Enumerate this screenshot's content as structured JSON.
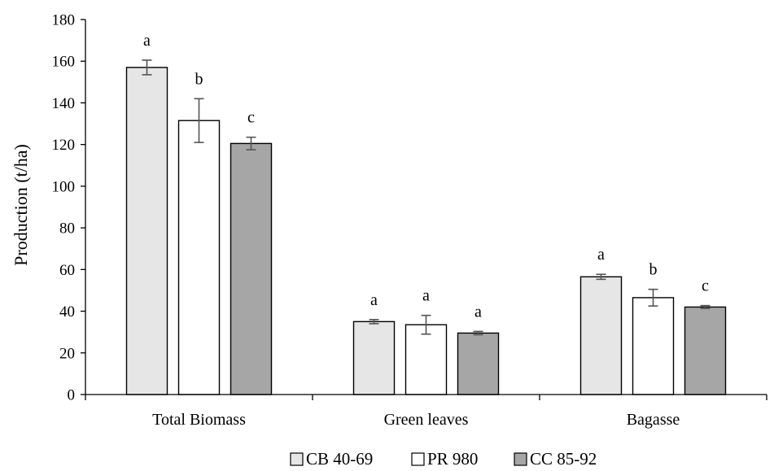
{
  "chart_data": {
    "type": "bar",
    "title": "",
    "xlabel": "",
    "ylabel": "Production (t/ha)",
    "ylim": [
      0,
      180
    ],
    "yticks": [
      0,
      20,
      40,
      60,
      80,
      100,
      120,
      140,
      160,
      180
    ],
    "categories": [
      "Total Biomass",
      "Green leaves",
      "Bagasse"
    ],
    "series": [
      {
        "name": "CB 40-69",
        "color": "#e6e6e6",
        "values": [
          157,
          35,
          56.5
        ],
        "errors": [
          3.5,
          1,
          1.2
        ],
        "significance": [
          "a",
          "a",
          "a"
        ]
      },
      {
        "name": "PR 980",
        "color": "#ffffff",
        "values": [
          131.5,
          33.5,
          46.5
        ],
        "errors": [
          10.5,
          4.5,
          4
        ],
        "significance": [
          "b",
          "a",
          "b"
        ]
      },
      {
        "name": "CC 85-92",
        "color": "#a6a6a6",
        "values": [
          120.5,
          29.5,
          42
        ],
        "errors": [
          3,
          0.8,
          0.7
        ],
        "significance": [
          "c",
          "a",
          "c"
        ]
      }
    ],
    "grid": false,
    "legend_position": "bottom"
  }
}
